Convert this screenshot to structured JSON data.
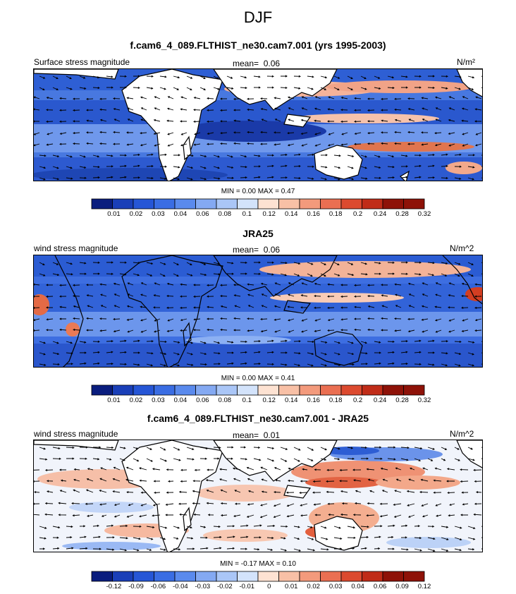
{
  "season": "DJF",
  "panels": [
    {
      "title": "f.cam6_4_089.FLTHIST_ne30.cam7.001 (yrs 1995-2003)",
      "left_label": "Surface stress magnitude",
      "mean_label": "mean=",
      "mean_value": "0.06",
      "units": "N/m²",
      "min_label": "MIN =",
      "min_value": "0.00",
      "max_label": "MAX =",
      "max_value": "0.47",
      "colorbar_ticks": [
        "0.01",
        "0.02",
        "0.03",
        "0.04",
        "0.06",
        "0.08",
        "0.1",
        "0.12",
        "0.14",
        "0.16",
        "0.18",
        "0.2",
        "0.24",
        "0.28",
        "0.32"
      ]
    },
    {
      "title": "JRA25",
      "left_label": "wind stress magnitude",
      "mean_label": "mean=",
      "mean_value": "0.06",
      "units": "N/m^2",
      "min_label": "MIN =",
      "min_value": "0.00",
      "max_label": "MAX =",
      "max_value": "0.41",
      "colorbar_ticks": [
        "0.01",
        "0.02",
        "0.03",
        "0.04",
        "0.06",
        "0.08",
        "0.1",
        "0.12",
        "0.14",
        "0.16",
        "0.18",
        "0.2",
        "0.24",
        "0.28",
        "0.32"
      ]
    },
    {
      "title": "f.cam6_4_089.FLTHIST_ne30.cam7.001 - JRA25",
      "left_label": "wind stress magnitude",
      "mean_label": "mean=",
      "mean_value": "0.01",
      "units": "N/m^2",
      "min_label": "MIN =",
      "min_value": "-0.17",
      "max_label": "MAX =",
      "max_value": "0.10",
      "colorbar_ticks": [
        "-0.12",
        "-0.09",
        "-0.06",
        "-0.04",
        "-0.03",
        "-0.02",
        "-0.01",
        "0",
        "0.01",
        "0.02",
        "0.03",
        "0.04",
        "0.06",
        "0.09",
        "0.12"
      ]
    }
  ],
  "colorbar_colors": [
    "#0a1d7e",
    "#1a3fb8",
    "#2656d6",
    "#3a6de3",
    "#5a8aed",
    "#84a9f2",
    "#aac6f7",
    "#d3e3fb",
    "#fde2d2",
    "#f8c0a6",
    "#f39a7c",
    "#ea6f52",
    "#dc4a2f",
    "#c02c18",
    "#8e1208"
  ],
  "chart_data": [
    {
      "type": "heatmap",
      "title": "f.cam6_4_089.FLTHIST_ne30.cam7.001 (yrs 1995-2003)",
      "variable": "Surface stress magnitude",
      "units": "N/m²",
      "mean": 0.06,
      "min": 0.0,
      "max": 0.47,
      "levels": [
        0.01,
        0.02,
        0.03,
        0.04,
        0.06,
        0.08,
        0.1,
        0.12,
        0.14,
        0.16,
        0.18,
        0.2,
        0.24,
        0.28,
        0.32
      ]
    },
    {
      "type": "heatmap",
      "title": "JRA25",
      "variable": "wind stress magnitude",
      "units": "N/m^2",
      "mean": 0.06,
      "min": 0.0,
      "max": 0.41,
      "levels": [
        0.01,
        0.02,
        0.03,
        0.04,
        0.06,
        0.08,
        0.1,
        0.12,
        0.14,
        0.16,
        0.18,
        0.2,
        0.24,
        0.28,
        0.32
      ]
    },
    {
      "type": "heatmap",
      "title": "f.cam6_4_089.FLTHIST_ne30.cam7.001 - JRA25",
      "variable": "wind stress magnitude",
      "units": "N/m^2",
      "mean": 0.01,
      "min": -0.17,
      "max": 0.1,
      "levels": [
        -0.12,
        -0.09,
        -0.06,
        -0.04,
        -0.03,
        -0.02,
        -0.01,
        0,
        0.01,
        0.02,
        0.03,
        0.04,
        0.06,
        0.09,
        0.12
      ]
    }
  ]
}
